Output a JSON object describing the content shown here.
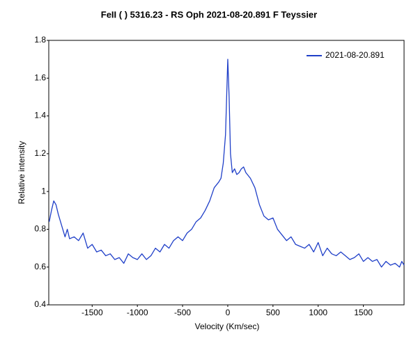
{
  "chart_data": {
    "type": "line",
    "title": "FeII  ( ) 5316.23 - RS Oph  2021-08-20.891  F Teyssier",
    "x_label": "Velocity (Km/sec)",
    "y_label": "Relative intensity",
    "xlim": [
      -1980,
      1950
    ],
    "ylim": [
      0.4,
      1.8
    ],
    "xticks": [
      -1500,
      -1000,
      -500,
      0,
      500,
      1000,
      1500
    ],
    "yticks": [
      0.4,
      0.6,
      0.8,
      1,
      1.2,
      1.4,
      1.6,
      1.8
    ],
    "grid": false,
    "legend": "upper right",
    "x": [
      -1975,
      -1950,
      -1925,
      -1900,
      -1875,
      -1850,
      -1825,
      -1800,
      -1775,
      -1750,
      -1700,
      -1650,
      -1600,
      -1550,
      -1500,
      -1450,
      -1400,
      -1350,
      -1300,
      -1250,
      -1200,
      -1150,
      -1100,
      -1050,
      -1000,
      -950,
      -900,
      -850,
      -800,
      -750,
      -700,
      -650,
      -600,
      -550,
      -500,
      -450,
      -400,
      -350,
      -300,
      -250,
      -200,
      -150,
      -100,
      -75,
      -50,
      -25,
      0,
      15,
      30,
      50,
      75,
      100,
      125,
      150,
      175,
      200,
      250,
      300,
      350,
      400,
      450,
      500,
      550,
      600,
      650,
      700,
      750,
      800,
      850,
      900,
      950,
      1000,
      1050,
      1100,
      1150,
      1200,
      1250,
      1300,
      1350,
      1400,
      1450,
      1500,
      1550,
      1600,
      1650,
      1700,
      1750,
      1800,
      1850,
      1900,
      1925,
      1950
    ],
    "series": [
      {
        "name": "2021-08-20.891",
        "color": "#1f3fc8",
        "values": [
          0.84,
          0.9,
          0.95,
          0.93,
          0.88,
          0.84,
          0.8,
          0.76,
          0.8,
          0.75,
          0.76,
          0.74,
          0.78,
          0.7,
          0.72,
          0.68,
          0.69,
          0.66,
          0.67,
          0.64,
          0.65,
          0.62,
          0.67,
          0.65,
          0.64,
          0.67,
          0.64,
          0.66,
          0.7,
          0.68,
          0.72,
          0.7,
          0.74,
          0.76,
          0.74,
          0.78,
          0.8,
          0.84,
          0.86,
          0.9,
          0.95,
          1.02,
          1.05,
          1.07,
          1.15,
          1.3,
          1.7,
          1.5,
          1.2,
          1.1,
          1.12,
          1.09,
          1.1,
          1.12,
          1.13,
          1.1,
          1.07,
          1.02,
          0.93,
          0.87,
          0.85,
          0.86,
          0.8,
          0.77,
          0.74,
          0.76,
          0.72,
          0.71,
          0.7,
          0.72,
          0.68,
          0.73,
          0.66,
          0.7,
          0.67,
          0.66,
          0.68,
          0.66,
          0.64,
          0.65,
          0.67,
          0.63,
          0.65,
          0.63,
          0.64,
          0.6,
          0.63,
          0.61,
          0.62,
          0.6,
          0.63,
          0.61
        ]
      }
    ]
  }
}
